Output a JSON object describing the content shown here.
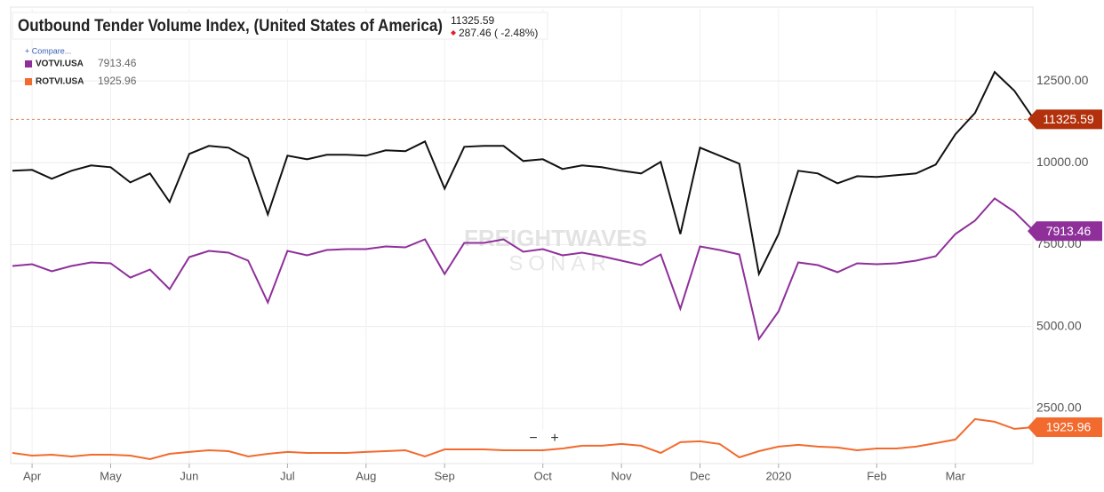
{
  "chart_data": {
    "type": "line",
    "title": "Outbound Tender Volume Index, (United States of America)",
    "change": "287.46 ( -2.48%)",
    "compare": "+ Compare...",
    "watermark": [
      "FREIGHTWAVES",
      "SONAR"
    ],
    "zoom_controls": [
      "−",
      "+"
    ],
    "categories": [
      null,
      "Apr",
      null,
      null,
      null,
      "May",
      null,
      null,
      null,
      "Jun",
      null,
      null,
      null,
      null,
      "Jul",
      null,
      null,
      null,
      "Aug",
      null,
      null,
      null,
      "Sep",
      null,
      null,
      null,
      null,
      "Oct",
      null,
      null,
      null,
      "Nov",
      null,
      null,
      null,
      "Dec",
      null,
      null,
      null,
      "2020",
      null,
      null,
      null,
      null,
      "Feb",
      null,
      null,
      null,
      "Mar",
      null,
      null,
      null,
      null
    ],
    "series": [
      {
        "color": "#111111",
        "flag_color": "#b3300c",
        "values": [
          9755,
          9783,
          9511,
          9755,
          9918,
          9864,
          9402,
          9674,
          8804,
          10272,
          10516,
          10462,
          10136,
          8424,
          10217,
          10109,
          10245,
          10245,
          10217,
          10380,
          10353,
          10652,
          9212,
          10489,
          10516,
          10516,
          10054,
          10109,
          9810,
          9918,
          9864,
          9755,
          9674,
          10027,
          7826,
          10462,
          10217,
          9973,
          6604,
          7826,
          9755,
          9674,
          9375,
          9592,
          9565,
          9620,
          9674,
          9946,
          10870,
          11522,
          12772,
          12201,
          11325.59
        ]
      },
      {
        "name": "VOTVI.USA",
        "color": "#8e2f9a",
        "values": [
          6848,
          6903,
          6685,
          6848,
          6957,
          6930,
          6495,
          6740,
          6142,
          7120,
          7310,
          7256,
          7011,
          5734,
          7310,
          7174,
          7337,
          7365,
          7365,
          7446,
          7419,
          7663,
          6604,
          7555,
          7555,
          7663,
          7283,
          7365,
          7174,
          7256,
          7147,
          7011,
          6876,
          7201,
          5544,
          7446,
          7337,
          7201,
          4620,
          5463,
          6957,
          6876,
          6658,
          6930,
          6903,
          6930,
          7011,
          7147,
          7826,
          8234,
          8913,
          8506,
          7913.46
        ]
      },
      {
        "name": "ROTVI.USA",
        "color": "#f26a2e",
        "values": [
          1141,
          1060,
          1087,
          1033,
          1087,
          1087,
          1060,
          951,
          1114,
          1169,
          1223,
          1196,
          1033,
          1114,
          1169,
          1141,
          1141,
          1141,
          1169,
          1196,
          1223,
          1033,
          1250,
          1250,
          1250,
          1223,
          1223,
          1223,
          1277,
          1359,
          1359,
          1413,
          1359,
          1141,
          1468,
          1495,
          1413,
          1006,
          1196,
          1332,
          1386,
          1332,
          1305,
          1223,
          1277,
          1277,
          1332,
          1440,
          1549,
          2174,
          2092,
          1875,
          1925.96
        ]
      }
    ],
    "ylim": [
      815,
      14700
    ],
    "yticks": [
      {
        "value": 2500,
        "label": "2500.00"
      },
      {
        "value": 5000,
        "label": "5000.00"
      },
      {
        "value": 7500,
        "label": "7500.00"
      },
      {
        "value": 10000,
        "label": "10000.00"
      },
      {
        "value": 12500,
        "label": "12500.00"
      }
    ],
    "grid": true
  }
}
